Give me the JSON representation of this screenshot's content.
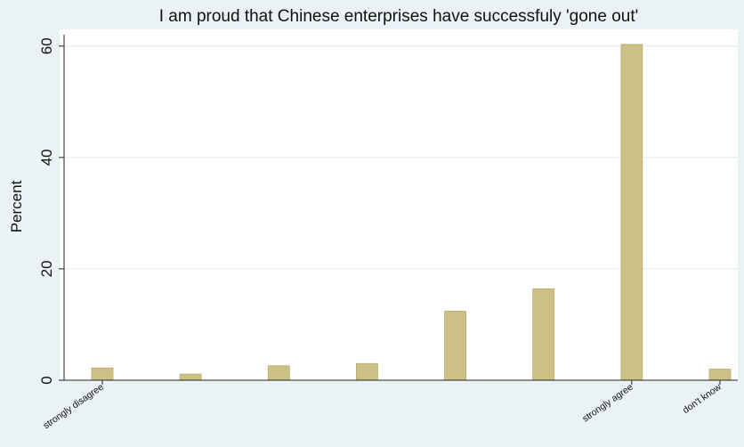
{
  "chart_data": {
    "type": "bar",
    "title": "I am proud that Chinese enterprises have successfuly 'gone out'",
    "xlabel": "",
    "ylabel": "Percent",
    "ylim": [
      0,
      63
    ],
    "yticks": [
      0,
      20,
      40,
      60
    ],
    "grid": true,
    "categories": [
      "strongly disagree",
      "",
      "",
      "",
      "",
      "",
      "strongly agree",
      "don't know"
    ],
    "values": [
      2.2,
      1.1,
      2.6,
      3.0,
      12.4,
      16.4,
      60.3,
      2.0
    ],
    "bar_color": "#cdc084",
    "bar_stroke": "#b8ab6e",
    "grid_color": "#dfecee",
    "plot_background": "#ffffff",
    "page_background": "#eaf2f3"
  }
}
